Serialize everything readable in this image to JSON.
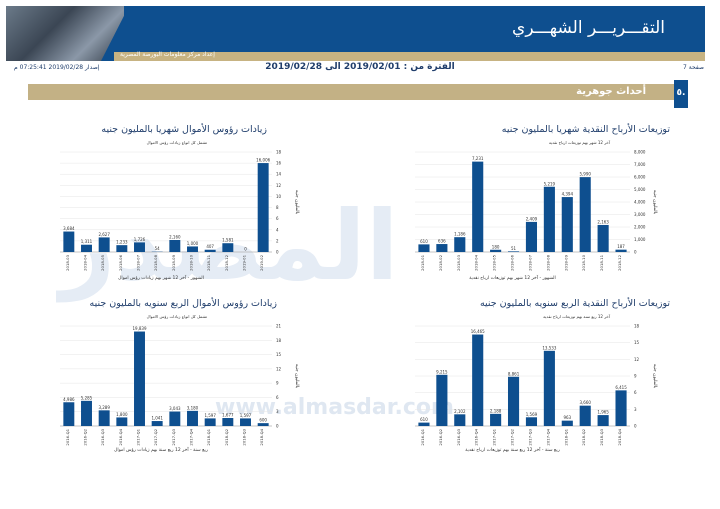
{
  "header": {
    "title": "التقـــريـــر الشهـــري",
    "strip_text": "إعداد مركز معلومات البورصة المصرية"
  },
  "meta": {
    "page_label": "صفحة 7",
    "issue": "إصدار 2019/02/28 07:25:41 م",
    "period": "الفترة من : 2019/02/01 الى 2019/02/28"
  },
  "section": {
    "num": "٥.",
    "title": "أحداث جوهرية"
  },
  "watermark": {
    "brand": "المصدر",
    "url": "www.almasdar.com"
  },
  "colors": {
    "bar": "#0e4f8f",
    "header": "#0e4f8f",
    "gold": "#c3b185"
  },
  "chart_data": [
    {
      "type": "bar",
      "title": "توزيعات الأرباح النقدية شهريا بالمليون جنيه",
      "subtitle": "آخر 12 شهر بهم توزيعات ارباح نقدية",
      "xlabel": "الشهور - آخر 12 شهر بهم توزيعات ارباح نقدية",
      "ylabel": "بالمليون جنيه",
      "categories": [
        "2018-01",
        "2018-02",
        "2018-03",
        "2018-04",
        "2018-05",
        "2018-06",
        "2018-07",
        "2018-08",
        "2018-09",
        "2018-10",
        "2018-11",
        "2018-12"
      ],
      "values": [
        610,
        636,
        1186,
        7231,
        180,
        51,
        2409,
        5219,
        4394,
        5990,
        2163,
        187
      ],
      "labels": [
        "610",
        "636",
        "1,186",
        "7,231",
        "180",
        "51",
        "2,409",
        "5,219",
        "4,394",
        "5,990",
        "2,163",
        "187"
      ],
      "ylim": [
        0,
        8000
      ],
      "yticks": [
        "0",
        "1,000",
        "2,000",
        "3,000",
        "4,000",
        "5,000",
        "6,000",
        "7,000",
        "8,000"
      ]
    },
    {
      "type": "bar",
      "title": "زيادات رؤوس الأموال شهريا بالمليون جنيه",
      "subtitle": "تشمل كل انواع زيادات رؤس الاموال",
      "xlabel": "الشهور - آخر 12 شهر بهم زيادات رؤس اموال",
      "ylabel": "بالمليون جنيه",
      "categories": [
        "2018-03",
        "2018-04",
        "2018-05",
        "2018-06",
        "2018-07",
        "2018-08",
        "2018-09",
        "2018-10",
        "2018-11",
        "2018-12",
        "2019-01",
        "2019-02"
      ],
      "values": [
        3684,
        1311,
        2627,
        1233,
        1726,
        54,
        2160,
        1000,
        407,
        1581,
        0,
        16006
      ],
      "labels": [
        "3,684",
        "1,311",
        "2,627",
        "1,233",
        "1,726",
        "54",
        "2,160",
        "1,000",
        "407",
        "1,581",
        "0",
        "16,006"
      ],
      "ylim": [
        0,
        18000
      ],
      "yticks": [
        "0",
        "2",
        "4",
        "6",
        "8",
        "10",
        "12",
        "14",
        "16",
        "18"
      ]
    },
    {
      "type": "bar",
      "title": "توزيعات الأرباح النقدية الربع سنويه بالمليون جنيه",
      "subtitle": "آخر 12 ربع سنة بهم توزيعات ارباح نقدية",
      "xlabel": "ربع سنة - آخر 12 ربع سنة بهم توزيعات ارباح نقدية",
      "ylabel": "بالمليون جنيه",
      "categories": [
        "2016-Q1",
        "2016-Q2",
        "2016-Q3",
        "2016-Q4",
        "2017-Q1",
        "2017-Q2",
        "2017-Q3",
        "2017-Q4",
        "2018-Q1",
        "2018-Q2",
        "2018-Q3",
        "2018-Q4"
      ],
      "values": [
        610,
        9215,
        2102,
        16465,
        2188,
        8861,
        1569,
        13533,
        963,
        3660,
        1965,
        6415
      ],
      "labels": [
        "610",
        "9,215",
        "2,102",
        "16,465",
        "2,188",
        "8,861",
        "1,569",
        "13,533",
        "963",
        "3,660",
        "1,965",
        "6,415"
      ],
      "ylim": [
        0,
        18000
      ],
      "yticks": [
        "0",
        "3",
        "6",
        "9",
        "12",
        "15",
        "18"
      ]
    },
    {
      "type": "bar",
      "title": "زيادات رؤوس الأموال الربع سنويه بالمليون جنيه",
      "subtitle": "تشمل كل انواع زيادات رؤس الاموال",
      "xlabel": "ربع سنة - آخر 12 ربع سنة بهم زيادات رؤس اموال",
      "ylabel": "بالمليون جنيه",
      "categories": [
        "2016-Q1",
        "2016-Q2",
        "2016-Q3",
        "2016-Q4",
        "2017-Q1",
        "2017-Q2",
        "2017-Q3",
        "2017-Q4",
        "2018-Q1",
        "2018-Q2",
        "2018-Q3",
        "2018-Q4"
      ],
      "values": [
        4986,
        5285,
        3289,
        1800,
        19839,
        1041,
        3043,
        3180,
        1597,
        1677,
        1597,
        600
      ],
      "labels": [
        "4,986",
        "5,285",
        "3,289",
        "1,800",
        "19,839",
        "1,041",
        "3,043",
        "3,180",
        "1,597",
        "1,677",
        "1,597",
        "600"
      ],
      "ylim": [
        0,
        21000
      ],
      "yticks": [
        "0",
        "3",
        "6",
        "9",
        "12",
        "15",
        "18",
        "21"
      ]
    }
  ]
}
